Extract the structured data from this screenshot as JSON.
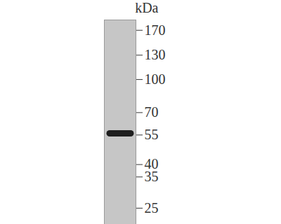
{
  "chart_data": {
    "type": "blot",
    "y_label": "kDa",
    "values": [
      56
    ],
    "color": "#1e1e1e",
    "ylim": [
      21,
      190
    ],
    "yticks": [
      170,
      130,
      100,
      70,
      55,
      40,
      35,
      25
    ],
    "log": "y",
    "tick_labels": "y"
  }
}
